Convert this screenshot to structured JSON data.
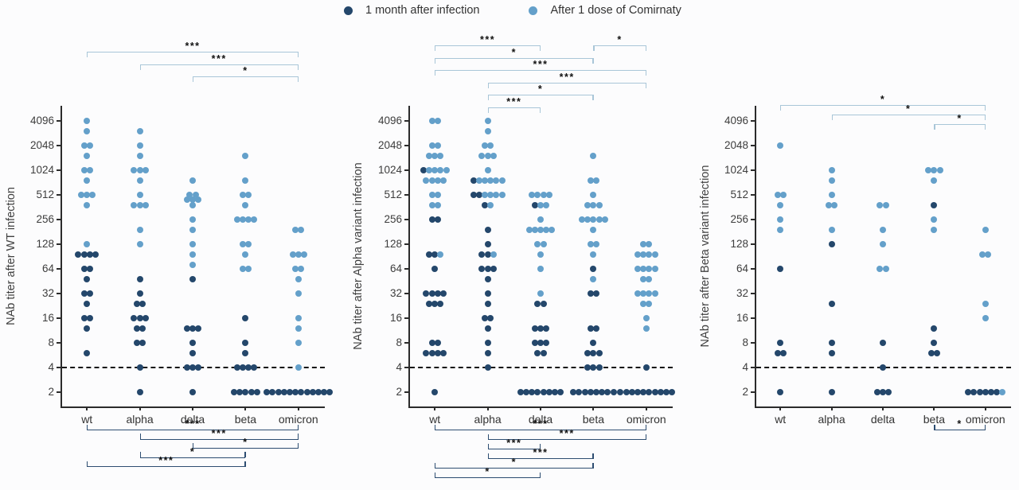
{
  "legend": {
    "items": [
      {
        "label": "1 month after infection",
        "color": "#24476b"
      },
      {
        "label": "After 1 dose of Comirnaty",
        "color": "#64a0ca"
      }
    ]
  },
  "colors": {
    "infection_series": "#24476b",
    "vaccine_series": "#64a0ca",
    "top_bracket": "#a9c6d8",
    "bottom_bracket": "#2d4d71",
    "axis": "#2b2b2b",
    "dashed_line": "#141414"
  },
  "chart_data": [
    {
      "type": "scatter",
      "ylabel": "NAb titer after WT infection",
      "categories": [
        "wt",
        "alpha",
        "delta",
        "beta",
        "omicron"
      ],
      "yticks": [
        4096,
        2048,
        1024,
        512,
        256,
        128,
        64,
        32,
        16,
        8,
        4,
        2
      ],
      "dashed_line_at": 4,
      "series": [
        {
          "name": "1 month after infection",
          "color": "#24476b",
          "points": {
            "wt": [
              96,
              96,
              96,
              96,
              64,
              64,
              48,
              32,
              32,
              24,
              16,
              16,
              12,
              6
            ],
            "alpha": [
              48,
              32,
              24,
              24,
              16,
              16,
              16,
              12,
              12,
              8,
              8,
              4,
              2
            ],
            "delta": [
              48,
              12,
              12,
              12,
              8,
              6,
              4,
              4,
              4,
              2
            ],
            "beta": [
              16,
              8,
              6,
              4,
              4,
              4,
              4,
              2,
              2,
              2,
              2,
              2
            ],
            "omicron": [
              2,
              2,
              2,
              2,
              2,
              2,
              2,
              2,
              2,
              2,
              2,
              2
            ]
          }
        },
        {
          "name": "After 1 dose of Comirnaty",
          "color": "#64a0ca",
          "points": {
            "wt": [
              4096,
              3072,
              2048,
              2048,
              1536,
              1024,
              1024,
              768,
              512,
              512,
              512,
              384,
              128
            ],
            "alpha": [
              3072,
              2048,
              1536,
              1024,
              1024,
              1024,
              768,
              512,
              384,
              384,
              384,
              192,
              128
            ],
            "delta": [
              768,
              512,
              512,
              448,
              448,
              448,
              384,
              256,
              192,
              128,
              96,
              72
            ],
            "beta": [
              1536,
              768,
              512,
              512,
              384,
              256,
              256,
              256,
              256,
              128,
              128,
              96,
              64,
              64
            ],
            "omicron": [
              192,
              192,
              96,
              96,
              96,
              64,
              64,
              48,
              32,
              16,
              12,
              8,
              4
            ]
          }
        }
      ],
      "sig_top": [
        {
          "from": 0,
          "to": 4,
          "label": "***",
          "row": 0
        },
        {
          "from": 1,
          "to": 4,
          "label": "***",
          "row": 1
        },
        {
          "from": 2,
          "to": 4,
          "label": "*",
          "row": 2
        }
      ],
      "sig_bottom": [
        {
          "from": 0,
          "to": 4,
          "label": "***",
          "row": 0
        },
        {
          "from": 1,
          "to": 4,
          "label": "***",
          "row": 1
        },
        {
          "from": 2,
          "to": 4,
          "label": "*",
          "row": 2
        },
        {
          "from": 1,
          "to": 3,
          "label": "*",
          "row": 3
        },
        {
          "from": 0,
          "to": 3,
          "label": "***",
          "row": 4
        }
      ]
    },
    {
      "type": "scatter",
      "ylabel": "NAb titer after Alpha variant infection",
      "categories": [
        "wt",
        "alpha",
        "delta",
        "beta",
        "omicron"
      ],
      "yticks": [
        4096,
        2048,
        1024,
        512,
        256,
        128,
        64,
        32,
        16,
        8,
        4,
        2
      ],
      "dashed_line_at": 4,
      "series": [
        {
          "name": "1 month after infection",
          "color": "#24476b",
          "points": {
            "wt": [
              1024,
              256,
              256,
              96,
              96,
              64,
              32,
              32,
              32,
              32,
              24,
              24,
              24,
              8,
              8,
              6,
              6,
              6,
              6,
              2
            ],
            "alpha": [
              768,
              512,
              512,
              384,
              192,
              128,
              96,
              96,
              64,
              64,
              64,
              48,
              32,
              24,
              16,
              16,
              12,
              8,
              6,
              4
            ],
            "delta": [
              384,
              24,
              24,
              12,
              12,
              12,
              8,
              8,
              8,
              6,
              6,
              2,
              2,
              2,
              2,
              2,
              2,
              2,
              2
            ],
            "beta": [
              64,
              32,
              32,
              12,
              12,
              8,
              6,
              6,
              6,
              4,
              4,
              4,
              2,
              2,
              2,
              2,
              2,
              2,
              2,
              2
            ],
            "omicron": [
              4,
              2,
              2,
              2,
              2,
              2,
              2,
              2,
              2,
              2,
              2
            ]
          }
        },
        {
          "name": "After 1 dose of Comirnaty",
          "color": "#64a0ca",
          "points": {
            "wt": [
              4096,
              4096,
              2048,
              2048,
              1536,
              1536,
              1536,
              1024,
              1024,
              1024,
              1024,
              768,
              768,
              768,
              768,
              512,
              512,
              384,
              384,
              96
            ],
            "alpha": [
              4096,
              3072,
              2048,
              2048,
              1536,
              1536,
              1536,
              1024,
              768,
              768,
              768,
              768,
              768,
              512,
              512,
              512,
              512,
              384,
              96
            ],
            "delta": [
              512,
              512,
              512,
              512,
              384,
              384,
              256,
              192,
              192,
              192,
              192,
              192,
              128,
              128,
              96,
              64,
              32
            ],
            "beta": [
              1536,
              768,
              768,
              512,
              384,
              384,
              384,
              256,
              256,
              256,
              256,
              256,
              192,
              128,
              128,
              96,
              48
            ],
            "omicron": [
              128,
              128,
              96,
              96,
              96,
              96,
              64,
              64,
              64,
              64,
              48,
              48,
              32,
              32,
              32,
              32,
              24,
              24,
              16,
              12
            ]
          }
        }
      ],
      "sig_top": [
        {
          "from": 0,
          "to": 2,
          "label": "***",
          "row": 0
        },
        {
          "from": 3,
          "to": 4,
          "label": "*",
          "row": 0
        },
        {
          "from": 0,
          "to": 3,
          "label": "*",
          "row": 1
        },
        {
          "from": 0,
          "to": 4,
          "label": "***",
          "row": 2
        },
        {
          "from": 1,
          "to": 4,
          "label": "***",
          "row": 3
        },
        {
          "from": 1,
          "to": 3,
          "label": "*",
          "row": 4
        },
        {
          "from": 1,
          "to": 2,
          "label": "***",
          "row": 5
        }
      ],
      "sig_bottom": [
        {
          "from": 0,
          "to": 4,
          "label": "***",
          "row": 0
        },
        {
          "from": 1,
          "to": 4,
          "label": "***",
          "row": 1
        },
        {
          "from": 1,
          "to": 2,
          "label": "***",
          "row": 2
        },
        {
          "from": 1,
          "to": 3,
          "label": "***",
          "row": 3
        },
        {
          "from": 0,
          "to": 3,
          "label": "*",
          "row": 4
        },
        {
          "from": 0,
          "to": 2,
          "label": "*",
          "row": 5
        }
      ]
    },
    {
      "type": "scatter",
      "ylabel": "NAb titer after Beta variant infection",
      "categories": [
        "wt",
        "alpha",
        "delta",
        "beta",
        "omicron"
      ],
      "yticks": [
        4096,
        2048,
        1024,
        512,
        256,
        128,
        64,
        32,
        16,
        8,
        4,
        2
      ],
      "dashed_line_at": 4,
      "series": [
        {
          "name": "1 month after infection",
          "color": "#24476b",
          "points": {
            "wt": [
              64,
              8,
              6,
              6,
              2
            ],
            "alpha": [
              128,
              24,
              8,
              6,
              2
            ],
            "delta": [
              8,
              4,
              2,
              2,
              2
            ],
            "beta": [
              384,
              12,
              8,
              6,
              6
            ],
            "omicron": [
              2,
              2,
              2,
              2,
              2,
              2
            ]
          }
        },
        {
          "name": "After 1 dose of Comirnaty",
          "color": "#64a0ca",
          "points": {
            "wt": [
              2048,
              512,
              512,
              384,
              256,
              192
            ],
            "alpha": [
              1024,
              768,
              512,
              384,
              384,
              192
            ],
            "delta": [
              384,
              384,
              192,
              128,
              64,
              64
            ],
            "beta": [
              1024,
              1024,
              1024,
              768,
              256,
              192
            ],
            "omicron": [
              192,
              96,
              96,
              24,
              16,
              2
            ]
          }
        }
      ],
      "sig_top": [
        {
          "from": 0,
          "to": 4,
          "label": "*",
          "row": 0
        },
        {
          "from": 1,
          "to": 4,
          "label": "*",
          "row": 1
        },
        {
          "from": 3,
          "to": 4,
          "label": "*",
          "row": 2
        }
      ],
      "sig_bottom": [
        {
          "from": 3,
          "to": 4,
          "label": "*",
          "row": 0
        }
      ]
    }
  ]
}
